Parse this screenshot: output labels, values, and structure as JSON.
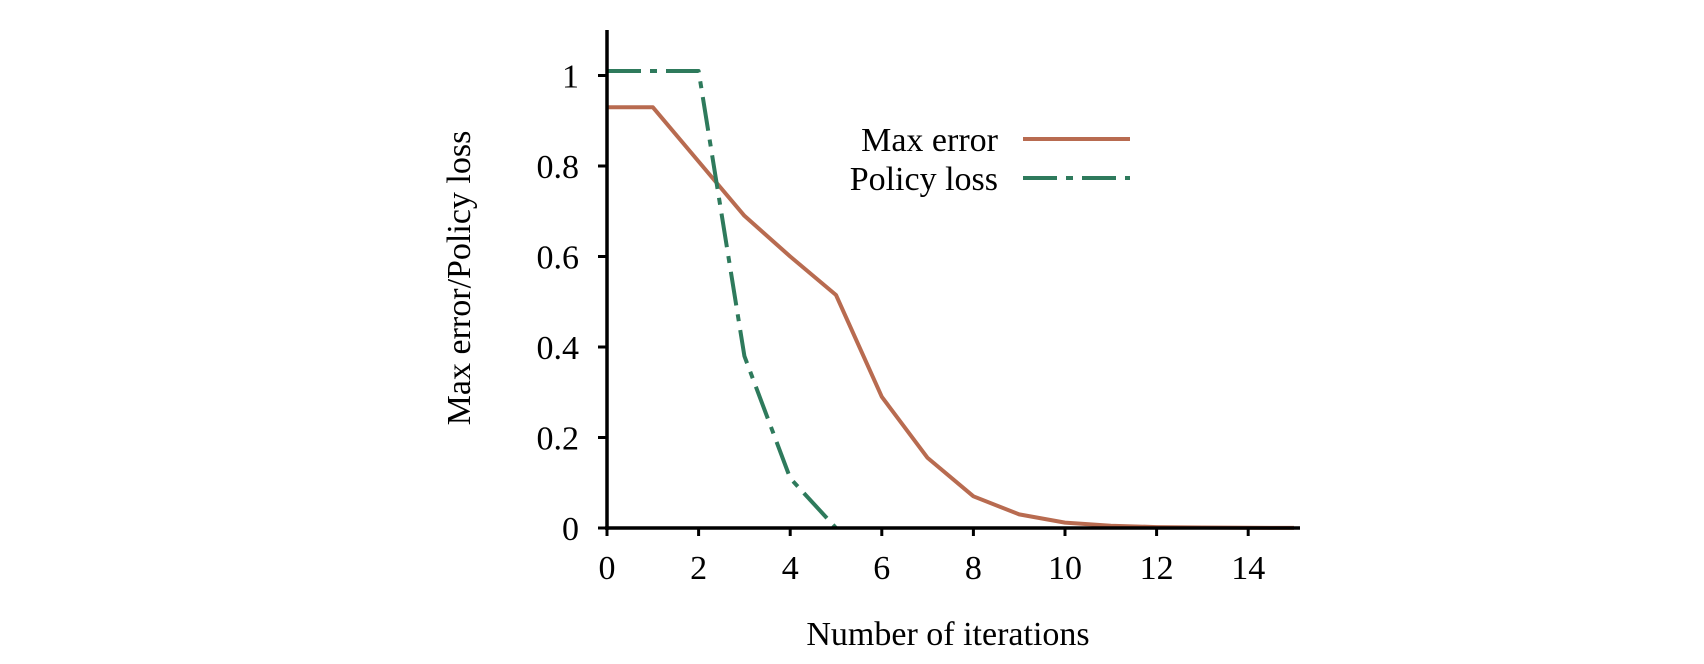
{
  "chart_data": {
    "type": "line",
    "title": "",
    "xlabel": "Number of iterations",
    "ylabel": "Max error/Policy loss",
    "xlim": [
      0,
      15
    ],
    "ylim": [
      0,
      1.1
    ],
    "xticks": [
      0,
      2,
      4,
      6,
      8,
      10,
      12,
      14
    ],
    "yticks": [
      0,
      0.2,
      0.4,
      0.6,
      0.8,
      1
    ],
    "ytick_labels": [
      "0",
      "0.2",
      "0.4",
      "0.6",
      "0.8",
      "1"
    ],
    "grid": false,
    "legend_position": "top-right",
    "series": [
      {
        "name": "Max error",
        "color": "#b86b50",
        "style": "solid",
        "x": [
          0,
          1,
          2,
          3,
          4,
          5,
          6,
          7,
          8,
          9,
          10,
          11,
          12,
          13,
          14,
          15
        ],
        "y": [
          0.93,
          0.93,
          0.81,
          0.69,
          0.6,
          0.515,
          0.29,
          0.155,
          0.07,
          0.03,
          0.012,
          0.005,
          0.002,
          0.001,
          0.0005,
          0.0002
        ]
      },
      {
        "name": "Policy loss",
        "color": "#2e7a5c",
        "style": "dashdot",
        "x": [
          0,
          1,
          2,
          3,
          4,
          5
        ],
        "y": [
          1.01,
          1.01,
          1.01,
          0.38,
          0.11,
          0.0
        ]
      }
    ]
  }
}
